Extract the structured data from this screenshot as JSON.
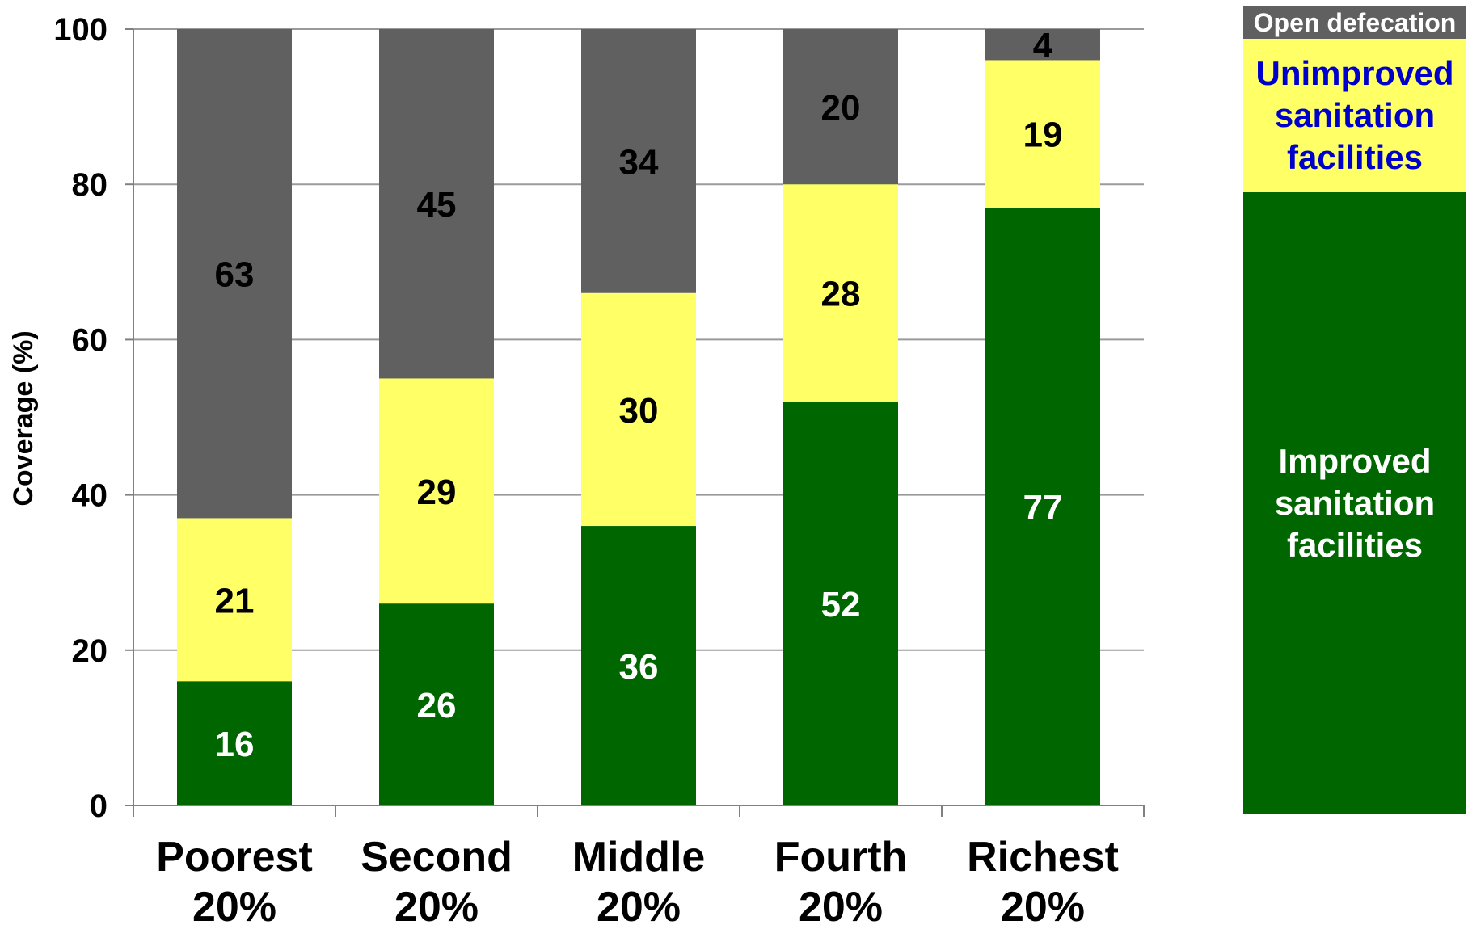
{
  "chart_data": {
    "type": "bar",
    "stacked": true,
    "ylabel": "Coverage (%)",
    "ylim": [
      0,
      100
    ],
    "yticks": [
      0,
      20,
      40,
      60,
      80,
      100
    ],
    "grid": true,
    "legend_position": "right",
    "categories": [
      "Poorest 20%",
      "Second 20%",
      "Middle 20%",
      "Fourth 20%",
      "Richest 20%"
    ],
    "category_lines": [
      [
        "Poorest",
        "20%"
      ],
      [
        "Second",
        "20%"
      ],
      [
        "Middle",
        "20%"
      ],
      [
        "Fourth",
        "20%"
      ],
      [
        "Richest",
        "20%"
      ]
    ],
    "series": [
      {
        "name": "Improved sanitation facilities",
        "values": [
          16,
          26,
          36,
          52,
          77
        ],
        "color": "#006600",
        "label_color": "#ffffff"
      },
      {
        "name": "Unimproved sanitation facilities",
        "values": [
          21,
          29,
          30,
          28,
          19
        ],
        "color": "#ffff66",
        "label_color": "#000000"
      },
      {
        "name": "Open defecation",
        "values": [
          63,
          45,
          34,
          20,
          4
        ],
        "color": "#606060",
        "label_color": "#000000"
      }
    ]
  },
  "legend": {
    "open": "Open defecation",
    "unimproved": "Unimproved sanitation facilities",
    "improved": "Improved sanitation facilities",
    "colors": {
      "open": "#606060",
      "unimproved": "#ffff66",
      "improved": "#006600",
      "unimproved_text": "#0000cc"
    }
  }
}
